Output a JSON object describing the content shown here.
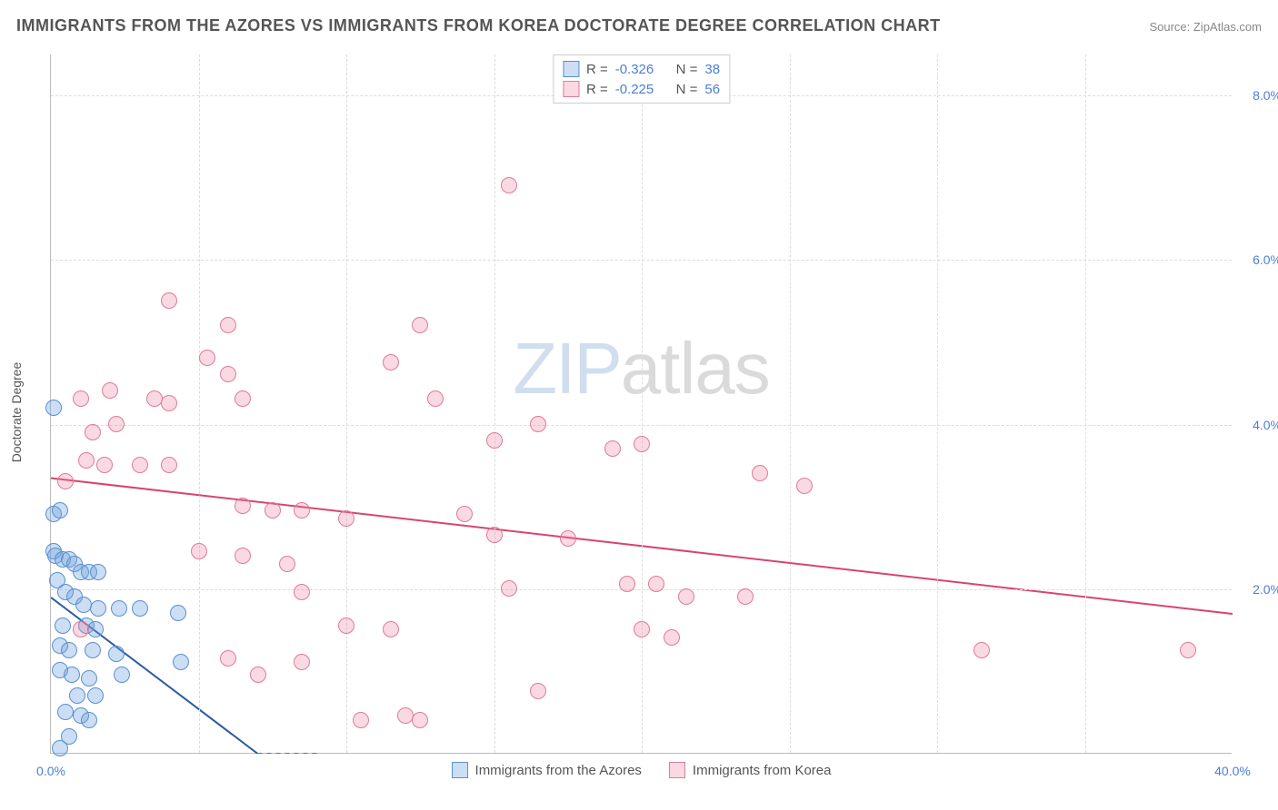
{
  "title": "IMMIGRANTS FROM THE AZORES VS IMMIGRANTS FROM KOREA DOCTORATE DEGREE CORRELATION CHART",
  "source_label": "Source: ",
  "source_name": "ZipAtlas.com",
  "y_axis_title": "Doctorate Degree",
  "watermark": {
    "part1": "ZIP",
    "part2": "atlas"
  },
  "chart": {
    "type": "scatter",
    "xlim": [
      0,
      40
    ],
    "ylim": [
      0,
      8.5
    ],
    "x_ticks": [
      0,
      5,
      10,
      15,
      20,
      25,
      30,
      35,
      40
    ],
    "x_tick_labels": {
      "0": "0.0%",
      "40": "40.0%"
    },
    "y_ticks": [
      2,
      4,
      6,
      8
    ],
    "y_tick_labels": {
      "2": "2.0%",
      "4": "4.0%",
      "6": "6.0%",
      "8": "8.0%"
    },
    "grid_color": "#dddddd",
    "axis_color": "#bbbbbb",
    "background_color": "#ffffff",
    "tick_label_color": "#4a7fd6",
    "point_radius": 9,
    "series": [
      {
        "id": "azores",
        "label": "Immigrants from the Azores",
        "fill": "rgba(110,160,220,0.35)",
        "stroke": "#5a8fd0",
        "trend_color": "#2c5aa0",
        "r_label": "R =",
        "r_value": "-0.326",
        "n_label": "N =",
        "n_value": "38",
        "trend": {
          "x1": 0,
          "y1": 1.9,
          "x2": 7,
          "y2": 0,
          "dash_x2": 9
        },
        "points": [
          [
            0.1,
            4.2
          ],
          [
            0.1,
            2.9
          ],
          [
            0.3,
            2.95
          ],
          [
            0.1,
            2.45
          ],
          [
            0.15,
            2.4
          ],
          [
            0.2,
            2.1
          ],
          [
            0.4,
            2.35
          ],
          [
            0.6,
            2.35
          ],
          [
            0.8,
            2.3
          ],
          [
            1.0,
            2.2
          ],
          [
            1.3,
            2.2
          ],
          [
            1.6,
            2.2
          ],
          [
            0.5,
            1.95
          ],
          [
            0.8,
            1.9
          ],
          [
            1.1,
            1.8
          ],
          [
            1.6,
            1.75
          ],
          [
            2.3,
            1.75
          ],
          [
            3.0,
            1.75
          ],
          [
            4.3,
            1.7
          ],
          [
            0.4,
            1.55
          ],
          [
            1.2,
            1.55
          ],
          [
            1.5,
            1.5
          ],
          [
            0.3,
            1.3
          ],
          [
            0.6,
            1.25
          ],
          [
            1.4,
            1.25
          ],
          [
            2.2,
            1.2
          ],
          [
            4.4,
            1.1
          ],
          [
            0.3,
            1.0
          ],
          [
            0.7,
            0.95
          ],
          [
            1.3,
            0.9
          ],
          [
            2.4,
            0.95
          ],
          [
            0.9,
            0.7
          ],
          [
            1.5,
            0.7
          ],
          [
            0.5,
            0.5
          ],
          [
            1.0,
            0.45
          ],
          [
            1.3,
            0.4
          ],
          [
            0.6,
            0.2
          ],
          [
            0.3,
            0.05
          ]
        ]
      },
      {
        "id": "korea",
        "label": "Immigrants from Korea",
        "fill": "rgba(235,130,160,0.3)",
        "stroke": "#e07a9a",
        "trend_color": "#d6456f",
        "r_label": "R =",
        "r_value": "-0.225",
        "n_label": "N =",
        "n_value": "56",
        "trend": {
          "x1": 0,
          "y1": 3.35,
          "x2": 40,
          "y2": 1.7
        },
        "points": [
          [
            15.5,
            6.9
          ],
          [
            4.0,
            5.5
          ],
          [
            6.0,
            5.2
          ],
          [
            12.5,
            5.2
          ],
          [
            5.3,
            4.8
          ],
          [
            11.5,
            4.75
          ],
          [
            6.0,
            4.6
          ],
          [
            2.0,
            4.4
          ],
          [
            1.0,
            4.3
          ],
          [
            3.5,
            4.3
          ],
          [
            4.0,
            4.25
          ],
          [
            6.5,
            4.3
          ],
          [
            13.0,
            4.3
          ],
          [
            16.5,
            4.0
          ],
          [
            2.2,
            4.0
          ],
          [
            1.4,
            3.9
          ],
          [
            15.0,
            3.8
          ],
          [
            19.0,
            3.7
          ],
          [
            20.0,
            3.75
          ],
          [
            1.2,
            3.55
          ],
          [
            0.5,
            3.3
          ],
          [
            1.8,
            3.5
          ],
          [
            3.0,
            3.5
          ],
          [
            4.0,
            3.5
          ],
          [
            24.0,
            3.4
          ],
          [
            25.5,
            3.25
          ],
          [
            6.5,
            3.0
          ],
          [
            7.5,
            2.95
          ],
          [
            8.5,
            2.95
          ],
          [
            14.0,
            2.9
          ],
          [
            10.0,
            2.85
          ],
          [
            15.0,
            2.65
          ],
          [
            17.5,
            2.6
          ],
          [
            5.0,
            2.45
          ],
          [
            6.5,
            2.4
          ],
          [
            8.0,
            2.3
          ],
          [
            19.5,
            2.05
          ],
          [
            20.5,
            2.05
          ],
          [
            15.5,
            2.0
          ],
          [
            8.5,
            1.95
          ],
          [
            1.0,
            1.5
          ],
          [
            21.5,
            1.9
          ],
          [
            23.5,
            1.9
          ],
          [
            10.0,
            1.55
          ],
          [
            11.5,
            1.5
          ],
          [
            20.0,
            1.5
          ],
          [
            21.0,
            1.4
          ],
          [
            31.5,
            1.25
          ],
          [
            38.5,
            1.25
          ],
          [
            6.0,
            1.15
          ],
          [
            8.5,
            1.1
          ],
          [
            7.0,
            0.95
          ],
          [
            16.5,
            0.75
          ],
          [
            12.0,
            0.45
          ],
          [
            12.5,
            0.4
          ],
          [
            10.5,
            0.4
          ]
        ]
      }
    ]
  }
}
